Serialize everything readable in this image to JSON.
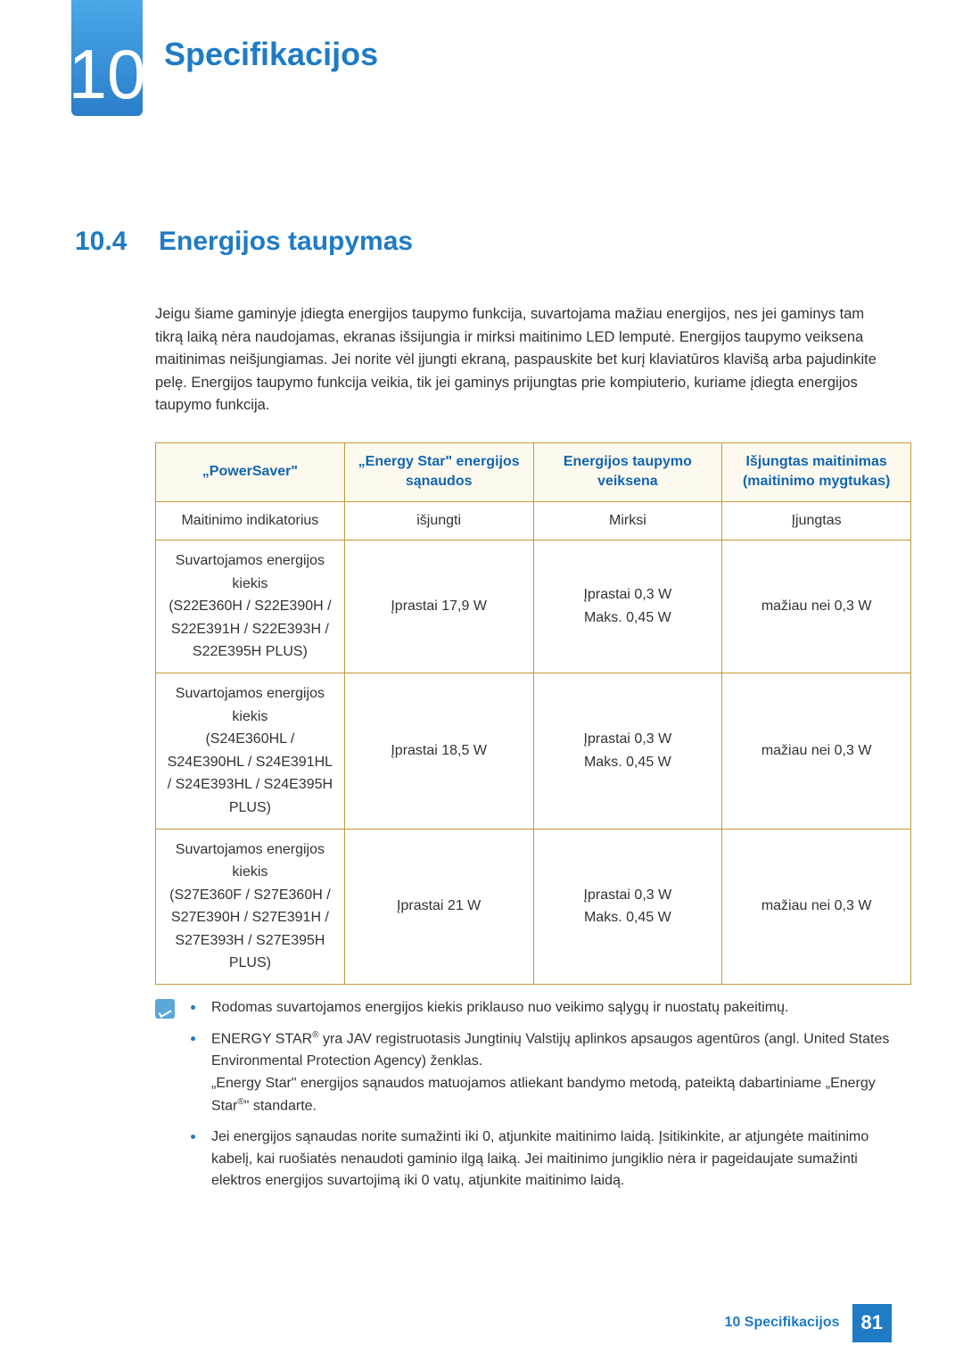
{
  "chapter": {
    "number": "10",
    "title": "Specifikacijos"
  },
  "section": {
    "number": "10.4",
    "title": "Energijos taupymas"
  },
  "intro": "Jeigu šiame gaminyje įdiegta energijos taupymo funkcija, suvartojama mažiau energijos, nes jei gaminys tam tikrą laiką nėra naudojamas, ekranas išsijungia ir mirksi maitinimo LED lemputė. Energijos taupymo veiksena maitinimas neišjungiamas. Jei norite vėl įjungti ekraną, paspauskite bet kurį klaviatūros klavišą arba pajudinkite pelę. Energijos taupymo funkcija veikia, tik jei gaminys prijungtas prie kompiuterio, kuriame įdiegta energijos taupymo funkcija.",
  "table": {
    "headers": {
      "c1": "„PowerSaver\"",
      "c2": "„Energy Star\" energijos sąnaudos",
      "c3": "Energijos taupymo veiksena",
      "c4": "Išjungtas maitinimas (maitinimo mygtukas)"
    },
    "rows": [
      {
        "c1": "Maitinimo indikatorius",
        "c2": "išjungti",
        "c3": "Mirksi",
        "c4": "Įjungtas"
      },
      {
        "c1": "Suvartojamos energijos kiekis\n(S22E360H / S22E390H / S22E391H / S22E393H / S22E395H PLUS)",
        "c2": "Įprastai 17,9 W",
        "c3": "Įprastai 0,3 W\nMaks. 0,45 W",
        "c4": "mažiau nei 0,3 W"
      },
      {
        "c1": "Suvartojamos energijos kiekis\n(S24E360HL / S24E390HL / S24E391HL / S24E393HL / S24E395H PLUS)",
        "c2": "Įprastai 18,5 W",
        "c3": "Įprastai 0,3 W\nMaks. 0,45 W",
        "c4": "mažiau nei 0,3 W"
      },
      {
        "c1": "Suvartojamos energijos kiekis\n(S27E360F / S27E360H / S27E390H / S27E391H / S27E393H / S27E395H PLUS)",
        "c2": "Įprastai 21 W",
        "c3": "Įprastai 0,3 W\nMaks. 0,45 W",
        "c4": "mažiau nei 0,3 W"
      }
    ],
    "border_color": "#c29a3a",
    "header_bg": "#fef9ef",
    "header_text_color": "#0f66b0"
  },
  "notes": [
    "Rodomas suvartojamos energijos kiekis priklauso nuo veikimo sąlygų ir nuostatų pakeitimų.",
    "ENERGY STAR® yra JAV registruotasis Jungtinių Valstijų aplinkos apsaugos agentūros (angl. United States Environmental Protection Agency) ženklas.\n„Energy Star\" energijos sąnaudos matuojamos atliekant bandymo metodą, pateiktą dabartiniame „Energy Star®\" standarte.",
    "Jei energijos sąnaudas norite sumažinti iki 0, atjunkite maitinimo laidą. Įsitikinkite, ar atjungėte maitinimo kabelį, kai ruošiatės nenaudoti gaminio ilgą laiką. Jei maitinimo jungiklio nėra ir pageidaujate sumažinti elektros energijos suvartojimą iki 0 vatų, atjunkite maitinimo laidą."
  ],
  "footer": {
    "text": "10 Specifikacijos",
    "page": "81"
  },
  "colors": {
    "accent": "#1f7bc4",
    "badge_gradient_top": "#4aa8e8",
    "badge_gradient_bottom": "#2b7ec9",
    "body_text": "#333333"
  }
}
